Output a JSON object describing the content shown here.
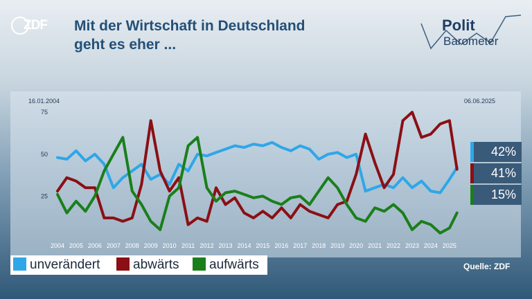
{
  "header": {
    "logo_text": "ZDF",
    "headline_line1": "Mit der Wirtschaft in Deutschland",
    "headline_line2": "geht es eher ...",
    "polit_text": "Polit",
    "barometer_text": "Barometer"
  },
  "chart_data": {
    "type": "line",
    "title": "Mit der Wirtschaft in Deutschland geht es eher ...",
    "date_start": "16.01.2004",
    "date_end": "06.06.2025",
    "x": [
      2004.0,
      2004.5,
      2005.0,
      2005.5,
      2006.0,
      2006.5,
      2007.0,
      2007.5,
      2008.0,
      2008.5,
      2009.0,
      2009.5,
      2010.0,
      2010.5,
      2011.0,
      2011.5,
      2012.0,
      2012.5,
      2013.0,
      2013.5,
      2014.0,
      2014.5,
      2015.0,
      2015.5,
      2016.0,
      2016.5,
      2017.0,
      2017.5,
      2018.0,
      2018.5,
      2019.0,
      2019.5,
      2020.0,
      2020.5,
      2021.0,
      2021.5,
      2022.0,
      2022.5,
      2023.0,
      2023.5,
      2024.0,
      2024.5,
      2025.0,
      2025.4
    ],
    "x_tick_labels": [
      "2004",
      "2005",
      "2006",
      "2007",
      "2008",
      "2009",
      "2010",
      "2011",
      "2012",
      "2013",
      "2014",
      "2015",
      "2016",
      "2017",
      "2018",
      "2019",
      "2020",
      "2021",
      "2022",
      "2023",
      "2024",
      "2025"
    ],
    "y_ticks": [
      25,
      50,
      75
    ],
    "ylim": [
      0,
      80
    ],
    "grid": false,
    "legend": "bottom-left",
    "series": [
      {
        "name": "unverändert",
        "color": "#2ea7e8",
        "end_value": "42%",
        "values": [
          48,
          47,
          52,
          46,
          50,
          44,
          30,
          36,
          40,
          44,
          35,
          38,
          32,
          44,
          40,
          50,
          49,
          51,
          53,
          55,
          54,
          56,
          55,
          57,
          54,
          52,
          55,
          53,
          47,
          50,
          51,
          48,
          50,
          28,
          30,
          32,
          30,
          36,
          30,
          34,
          28,
          27,
          35,
          42
        ]
      },
      {
        "name": "abwärts",
        "color": "#8b0f14",
        "end_value": "41%",
        "values": [
          28,
          36,
          34,
          30,
          30,
          12,
          12,
          10,
          12,
          32,
          70,
          40,
          28,
          36,
          8,
          12,
          10,
          30,
          20,
          24,
          15,
          12,
          16,
          12,
          18,
          12,
          20,
          16,
          14,
          12,
          20,
          22,
          38,
          62,
          45,
          30,
          38,
          70,
          75,
          60,
          62,
          68,
          70,
          41
        ]
      },
      {
        "name": "aufwärts",
        "color": "#1a7f1a",
        "end_value": "15%",
        "values": [
          26,
          15,
          22,
          16,
          25,
          40,
          50,
          60,
          28,
          20,
          10,
          5,
          25,
          30,
          55,
          60,
          30,
          22,
          27,
          28,
          26,
          24,
          25,
          22,
          20,
          24,
          25,
          20,
          28,
          36,
          30,
          20,
          12,
          10,
          18,
          16,
          20,
          15,
          5,
          10,
          8,
          3,
          6,
          15
        ]
      }
    ]
  },
  "source": "Quelle: ZDF"
}
